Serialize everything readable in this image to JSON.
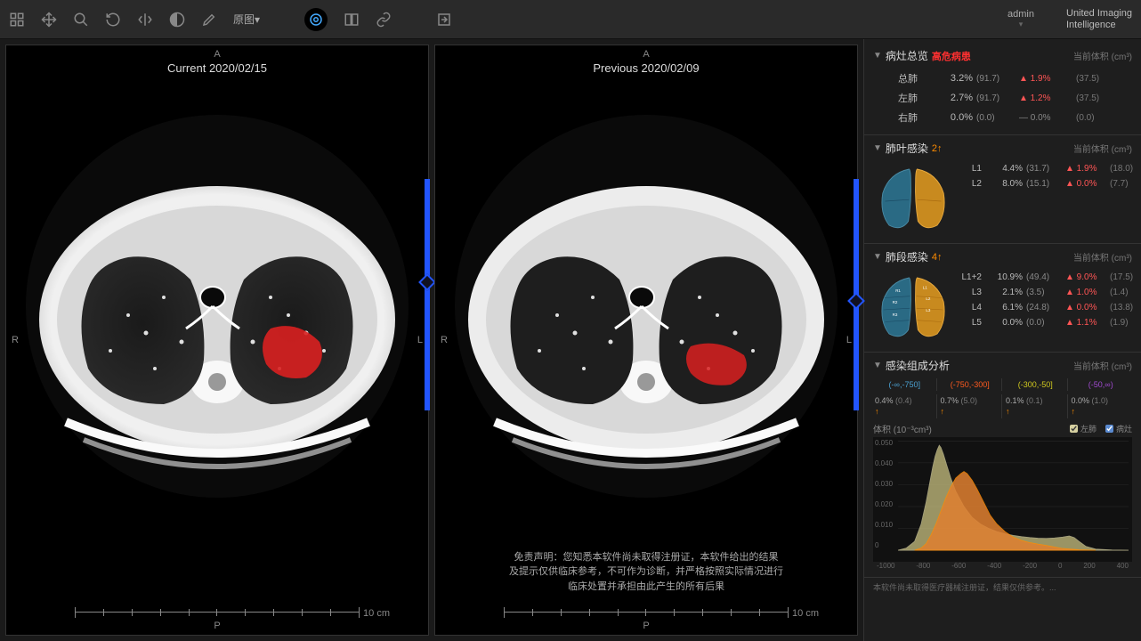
{
  "toolbar": {
    "dropdown_label": "原图▾",
    "user": "admin",
    "brand_line1": "United Imaging",
    "brand_line2": "Intelligence"
  },
  "viewers": {
    "current": {
      "title": "Current 2020/02/15",
      "orient_top": "A",
      "orient_left": "R",
      "orient_right": "L",
      "orient_bottom": "P",
      "ruler_label": "10 cm",
      "lesion_color": "#d92020"
    },
    "previous": {
      "title": "Previous 2020/02/09",
      "orient_top": "A",
      "orient_left": "R",
      "orient_right": "L",
      "orient_bottom": "P",
      "ruler_label": "10 cm",
      "lesion_color": "#d92020",
      "disclaimer_line1": "免责声明：您知悉本软件尚未取得注册证，本软件给出的结果",
      "disclaimer_line2": "及提示仅供临床参考，不可作为诊断，并严格按照实际情况进行",
      "disclaimer_line3": "临床处置并承担由此产生的所有后果"
    },
    "slider": {
      "track_color": "#2255ff",
      "thumb_pos_current": 0.42,
      "thumb_pos_previous": 0.5
    }
  },
  "panel": {
    "section1": {
      "title": "病灶总览",
      "badge": "高危病患",
      "unit": "当前体积 (cm³)",
      "rows": [
        {
          "label": "总肺",
          "val": "3.2%",
          "vol": "(91.7)",
          "delta": "▲ 1.9%",
          "dclass": "up",
          "pvol": "(37.5)"
        },
        {
          "label": "左肺",
          "val": "2.7%",
          "vol": "(91.7)",
          "delta": "▲ 1.2%",
          "dclass": "up",
          "pvol": "(37.5)"
        },
        {
          "label": "右肺",
          "val": "0.0%",
          "vol": "(0.0)",
          "delta": "— 0.0%",
          "dclass": "flat",
          "pvol": "(0.0)"
        }
      ]
    },
    "section2": {
      "title": "肺叶感染",
      "badge": "2↑",
      "unit": "当前体积 (cm³)",
      "rows": [
        {
          "label": "L1",
          "val": "4.4%",
          "vol": "(31.7)",
          "delta": "▲ 1.9%",
          "dclass": "up",
          "pvol": "(18.0)"
        },
        {
          "label": "L2",
          "val": "8.0%",
          "vol": "(15.1)",
          "delta": "▲ 0.0%",
          "dclass": "up",
          "pvol": "(7.7)"
        }
      ],
      "left_lung_color": "#2a6a84",
      "right_lung_color": "#c88a1f"
    },
    "section3": {
      "title": "肺段感染",
      "badge": "4↑",
      "unit": "当前体积 (cm³)",
      "rows": [
        {
          "label": "L1+2",
          "val": "10.9%",
          "vol": "(49.4)",
          "delta": "▲ 9.0%",
          "dclass": "up",
          "pvol": "(17.5)"
        },
        {
          "label": "L3",
          "val": "2.1%",
          "vol": "(3.5)",
          "delta": "▲ 1.0%",
          "dclass": "up",
          "pvol": "(1.4)"
        },
        {
          "label": "L4",
          "val": "6.1%",
          "vol": "(24.8)",
          "delta": "▲ 0.0%",
          "dclass": "up",
          "pvol": "(13.8)"
        },
        {
          "label": "L5",
          "val": "0.0%",
          "vol": "(0.0)",
          "delta": "▲ 1.1%",
          "dclass": "up",
          "pvol": "(1.9)"
        }
      ],
      "left_lung_color": "#2a6a84",
      "right_lung_color": "#c88a1f"
    },
    "section4": {
      "title": "感染组成分析",
      "unit": "当前体积 (cm³)",
      "bins": [
        {
          "range": "(-∞,-750]",
          "color": "#4aa0d0"
        },
        {
          "range": "(-750,-300]",
          "color": "#ff5a1f"
        },
        {
          "range": "(-300,-50]",
          "color": "#d0c81f"
        },
        {
          "range": "(-50,∞)",
          "color": "#a04ad0"
        }
      ],
      "stats": [
        {
          "val": "0.4%",
          "vol": "(0.4)",
          "arrow": "↑",
          "aclass": "up"
        },
        {
          "val": "0.7%",
          "vol": "(5.0)",
          "arrow": "↑",
          "aclass": "up"
        },
        {
          "val": "0.1%",
          "vol": "(0.1)",
          "arrow": "↑",
          "aclass": "up"
        },
        {
          "val": "0.0%",
          "vol": "(1.0)",
          "arrow": "↑",
          "aclass": "up"
        }
      ]
    },
    "histogram": {
      "ylabel": "体积 (10⁻³cm³)",
      "legend": [
        {
          "label": "左肺",
          "color": "#d6d0a0"
        },
        {
          "label": "病灶",
          "color": "#5a8ad0"
        }
      ],
      "yticks": [
        "0.050",
        "0.040",
        "0.030",
        "0.020",
        "0.010",
        "0"
      ],
      "xticks": [
        "-1000",
        "-800",
        "-600",
        "-400",
        "-200",
        "0",
        "200",
        "400"
      ],
      "xlim": [
        -1000,
        400
      ],
      "ylim": [
        0,
        0.05
      ],
      "series_lung": {
        "color_fill": "#c8c080",
        "color_line": "#d6d0a0",
        "points": [
          [
            -1000,
            0
          ],
          [
            -950,
            0.001
          ],
          [
            -900,
            0.004
          ],
          [
            -860,
            0.012
          ],
          [
            -830,
            0.022
          ],
          [
            -805,
            0.032
          ],
          [
            -790,
            0.038
          ],
          [
            -775,
            0.043
          ],
          [
            -762,
            0.046
          ],
          [
            -750,
            0.048
          ],
          [
            -740,
            0.047
          ],
          [
            -725,
            0.044
          ],
          [
            -705,
            0.039
          ],
          [
            -680,
            0.033
          ],
          [
            -650,
            0.027
          ],
          [
            -600,
            0.02
          ],
          [
            -550,
            0.015
          ],
          [
            -500,
            0.012
          ],
          [
            -450,
            0.01
          ],
          [
            -400,
            0.0085
          ],
          [
            -350,
            0.0075
          ],
          [
            -300,
            0.0068
          ],
          [
            -250,
            0.0062
          ],
          [
            -200,
            0.0058
          ],
          [
            -150,
            0.0055
          ],
          [
            -100,
            0.0054
          ],
          [
            -50,
            0.0056
          ],
          [
            0,
            0.006
          ],
          [
            40,
            0.0065
          ],
          [
            70,
            0.0058
          ],
          [
            100,
            0.004
          ],
          [
            140,
            0.0018
          ],
          [
            200,
            0.0005
          ],
          [
            300,
            0.0001
          ],
          [
            400,
            0
          ]
        ]
      },
      "series_lesion": {
        "color_fill": "#e08030",
        "color_line": "#ff8c00",
        "opacity": 0.85,
        "points": [
          [
            -900,
            0
          ],
          [
            -860,
            0.001
          ],
          [
            -830,
            0.003
          ],
          [
            -800,
            0.007
          ],
          [
            -770,
            0.012
          ],
          [
            -740,
            0.018
          ],
          [
            -710,
            0.024
          ],
          [
            -680,
            0.029
          ],
          [
            -650,
            0.033
          ],
          [
            -620,
            0.035
          ],
          [
            -600,
            0.036
          ],
          [
            -580,
            0.035
          ],
          [
            -550,
            0.032
          ],
          [
            -520,
            0.028
          ],
          [
            -480,
            0.022
          ],
          [
            -440,
            0.016
          ],
          [
            -400,
            0.012
          ],
          [
            -350,
            0.0085
          ],
          [
            -300,
            0.006
          ],
          [
            -250,
            0.0045
          ],
          [
            -200,
            0.0035
          ],
          [
            -150,
            0.0028
          ],
          [
            -100,
            0.0022
          ],
          [
            -50,
            0.0015
          ],
          [
            0,
            0.0008
          ],
          [
            100,
            0.0002
          ],
          [
            200,
            0
          ]
        ]
      }
    },
    "footer": "本软件尚未取得医疗器械注册证，结果仅供参考。..."
  },
  "colors": {
    "bg": "#1a1a1a",
    "panel_bg": "#1e1e1e",
    "border": "#333333",
    "text": "#cccccc",
    "muted": "#888888"
  }
}
